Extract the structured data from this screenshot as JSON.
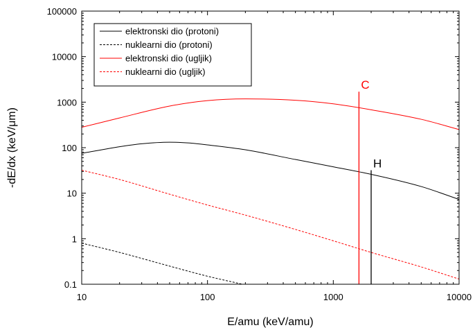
{
  "chart_data": {
    "type": "line",
    "title": "",
    "xlabel": "E/amu (keV/amu)",
    "ylabel": "-dE/dx (keV/μm)",
    "x_scale": "log",
    "y_scale": "log",
    "xlim": [
      10,
      10000
    ],
    "ylim": [
      0.1,
      100000
    ],
    "x_ticks": [
      "10",
      "100",
      "1000",
      "10000"
    ],
    "y_ticks": [
      "0.1",
      "1",
      "10",
      "100",
      "1000",
      "10000",
      "100000"
    ],
    "legend_position": "top-left",
    "grid": false,
    "series": [
      {
        "name": "elektronski dio (protoni)",
        "color": "#000000",
        "dash": "solid",
        "x": [
          10,
          20,
          30,
          50,
          70,
          100,
          200,
          500,
          1000,
          2000,
          5000,
          10000
        ],
        "y": [
          75,
          105,
          122,
          132,
          127,
          115,
          90,
          55,
          38,
          26,
          14,
          7.3
        ]
      },
      {
        "name": "nuklearni dio (protoni)",
        "color": "#000000",
        "dash": "dashed",
        "x": [
          10,
          20,
          50,
          100,
          190
        ],
        "y": [
          0.8,
          0.5,
          0.25,
          0.15,
          0.1
        ]
      },
      {
        "name": "elektronski dio (ugljik)",
        "color": "#ff0000",
        "dash": "solid",
        "x": [
          10,
          20,
          50,
          100,
          200,
          500,
          1000,
          2000,
          5000,
          10000
        ],
        "y": [
          280,
          450,
          820,
          1080,
          1180,
          1100,
          920,
          680,
          420,
          250
        ]
      },
      {
        "name": "nuklearni dio (ugljik)",
        "color": "#ff0000",
        "dash": "dashed",
        "x": [
          10,
          20,
          50,
          100,
          200,
          500,
          1000,
          2000,
          5000,
          10000
        ],
        "y": [
          32,
          20,
          9.5,
          5.5,
          3.3,
          1.6,
          0.9,
          0.5,
          0.24,
          0.13
        ]
      }
    ],
    "vertical_lines": [
      {
        "label": "C",
        "x": 1600,
        "y_top": 1700,
        "color": "#ff0000"
      },
      {
        "label": "H",
        "x": 2000,
        "y_top": 32,
        "color": "#000000"
      }
    ]
  }
}
